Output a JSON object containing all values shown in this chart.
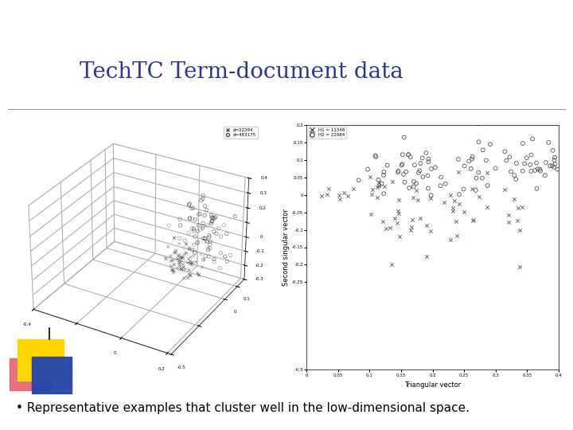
{
  "title": "TechTC Term-document data",
  "title_color": "#2B3990",
  "title_fontsize": 20,
  "bullet_text": "• Representative examples that cluster well in the low-dimensional space.",
  "bullet_fontsize": 11,
  "background_color": "#ffffff",
  "logo_yellow": "#FFD700",
  "logo_pink": "#E86070",
  "logo_blue": "#2244AA",
  "scatter3d_legend1": "d=22394",
  "scatter3d_legend2": "d=483175",
  "scatter2d_xlabel": "Triangular vector",
  "scatter2d_ylabel": "Second singular vector",
  "scatter2d_legend1": "H1 = 11348",
  "scatter2d_legend2": "H2 = 22984",
  "seed": 42
}
